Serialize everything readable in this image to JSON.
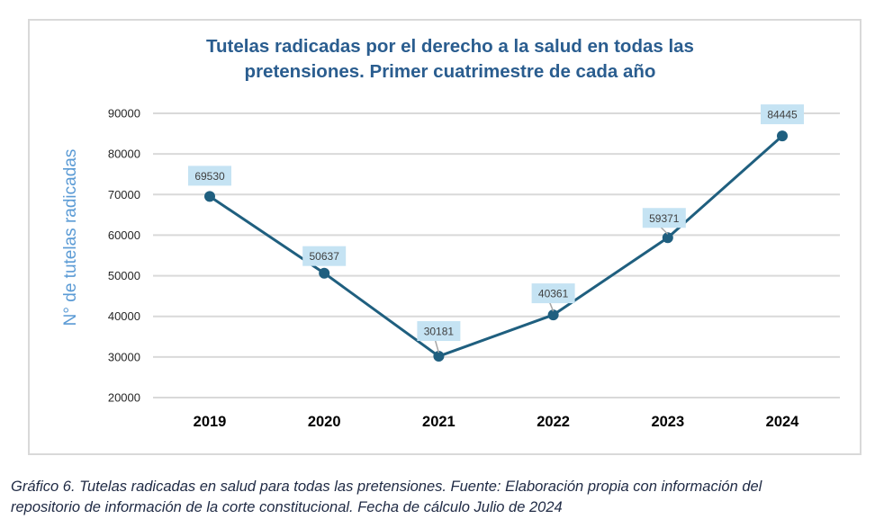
{
  "chart_data": {
    "type": "line",
    "title": "Tutelas radicadas por el derecho a la salud en todas las pretensiones.  Primer cuatrimestre de cada año",
    "title_lines": [
      "Tutelas radicadas por el derecho a la salud en todas las",
      "pretensiones.  Primer cuatrimestre de cada año"
    ],
    "xlabel": "",
    "ylabel": "N° de tutelas radicadas",
    "categories": [
      "2019",
      "2020",
      "2021",
      "2022",
      "2023",
      "2024"
    ],
    "series": [
      {
        "name": "Tutelas radicadas",
        "values": [
          69530,
          50637,
          30181,
          40361,
          59371,
          84445
        ]
      }
    ],
    "data_labels": [
      "69530",
      "50637",
      "30181",
      "40361",
      "59371",
      "84445"
    ],
    "ylim": [
      20000,
      90000
    ],
    "yticks": [
      "20000",
      "30000",
      "40000",
      "50000",
      "60000",
      "70000",
      "80000",
      "90000"
    ],
    "grid": true,
    "legend": "none",
    "colors": {
      "line": "#1f5f7f",
      "marker": "#1f5f7f",
      "label_bg": "#c5e3f3",
      "grid": "#d9d9d9",
      "title": "#2a5d8f",
      "ylabel": "#5b9bd5"
    }
  },
  "caption": {
    "line1": "Gráfico 6.  Tutelas radicadas en salud para todas las pretensiones.  Fuente: Elaboración propia con información del",
    "line2": "repositorio de información de la corte constitucional. Fecha de cálculo Julio de 2024"
  }
}
